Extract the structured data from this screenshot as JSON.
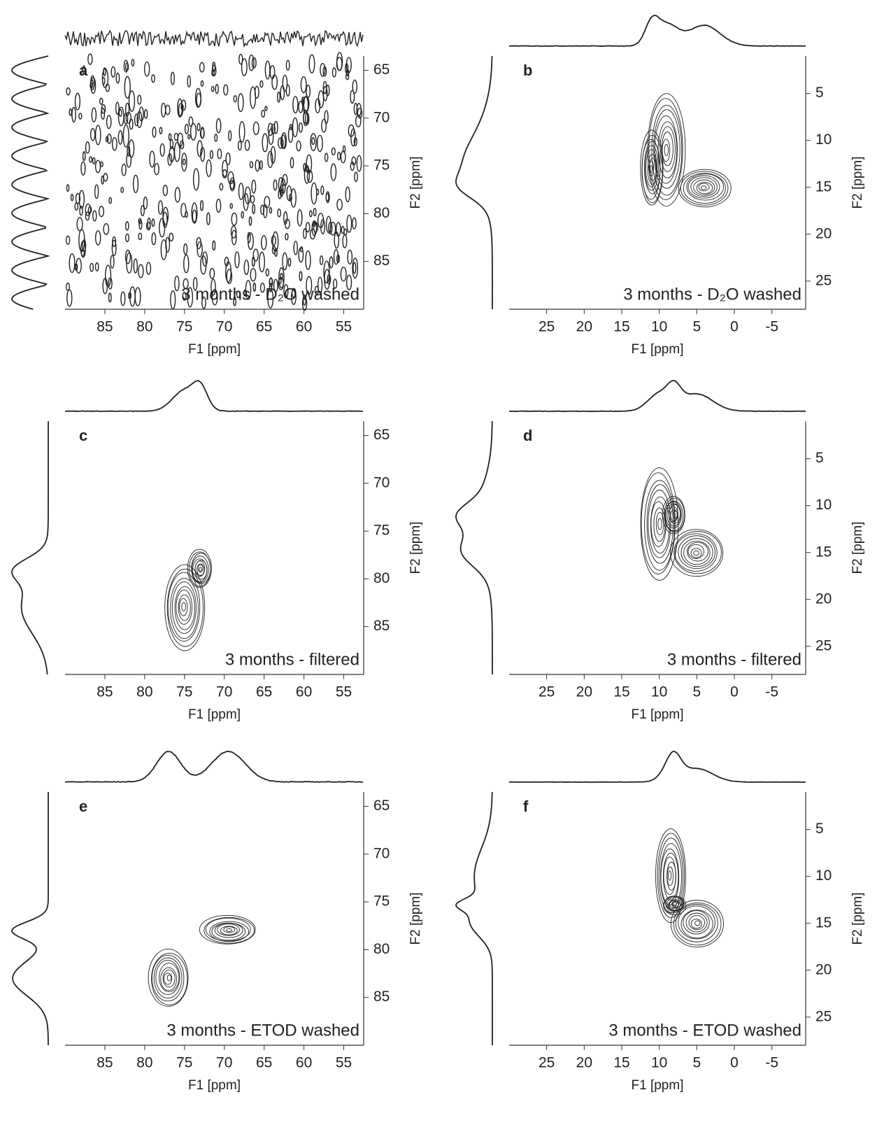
{
  "chart_data": [
    {
      "type": "contour",
      "label": "a",
      "annotation": "3 months - D₂O washed",
      "x_label": "F1 [ppm]",
      "y_label": "F2 [ppm]",
      "xlim": [
        90,
        52.5
      ],
      "xticks": [
        85,
        80,
        75,
        70,
        65,
        60,
        55
      ],
      "ylim": [
        63.5,
        90
      ],
      "yticks": [
        65,
        70,
        75,
        80,
        85
      ],
      "peaks": []
    },
    {
      "type": "contour",
      "label": "b",
      "annotation": "3 months - D₂O washed",
      "x_label": "F1 [ppm]",
      "y_label": "F2 [ppm]",
      "xlim": [
        30,
        -9.5
      ],
      "xticks": [
        25,
        20,
        15,
        10,
        5,
        0,
        -5
      ],
      "ylim": [
        1,
        28
      ],
      "yticks": [
        5,
        10,
        15,
        20,
        25
      ],
      "peaks": [
        {
          "x": 9,
          "y": 11,
          "x_width": 2.5,
          "y_width": 6
        },
        {
          "x": 11,
          "y": 13,
          "x_width": 1.5,
          "y_width": 4
        },
        {
          "x": 4,
          "y": 15,
          "x_width": 3.5,
          "y_width": 2
        }
      ]
    },
    {
      "type": "contour",
      "label": "c",
      "annotation": "3 months - filtered",
      "x_label": "F1 [ppm]",
      "y_label": "F2 [ppm]",
      "xlim": [
        90,
        52.5
      ],
      "xticks": [
        85,
        80,
        75,
        70,
        65,
        60,
        55
      ],
      "ylim": [
        63.5,
        90
      ],
      "yticks": [
        65,
        70,
        75,
        80,
        85
      ],
      "peaks": [
        {
          "x": 75,
          "y": 83,
          "x_width": 2.5,
          "y_width": 4.5
        },
        {
          "x": 73,
          "y": 79,
          "x_width": 1.5,
          "y_width": 2
        }
      ]
    },
    {
      "type": "contour",
      "label": "d",
      "annotation": "3 months - filtered",
      "x_label": "F1 [ppm]",
      "y_label": "F2 [ppm]",
      "xlim": [
        30,
        -9.5
      ],
      "xticks": [
        25,
        20,
        15,
        10,
        5,
        0,
        -5
      ],
      "ylim": [
        1,
        28
      ],
      "yticks": [
        5,
        10,
        15,
        20,
        25
      ],
      "peaks": [
        {
          "x": 10,
          "y": 12,
          "x_width": 2.5,
          "y_width": 6
        },
        {
          "x": 8,
          "y": 11,
          "x_width": 1.5,
          "y_width": 2
        },
        {
          "x": 5,
          "y": 15,
          "x_width": 3.5,
          "y_width": 2.5
        }
      ]
    },
    {
      "type": "contour",
      "label": "e",
      "annotation": "3 months - ETOD washed",
      "x_label": "F1 [ppm]",
      "y_label": "F2 [ppm]",
      "xlim": [
        90,
        52.5
      ],
      "xticks": [
        85,
        80,
        75,
        70,
        65,
        60,
        55
      ],
      "ylim": [
        63.5,
        90
      ],
      "yticks": [
        65,
        70,
        75,
        80,
        85
      ],
      "peaks": [
        {
          "x": 69.5,
          "y": 78,
          "x_width": 3.5,
          "y_width": 1.5
        },
        {
          "x": 77,
          "y": 83,
          "x_width": 2.5,
          "y_width": 3
        }
      ]
    },
    {
      "type": "contour",
      "label": "f",
      "annotation": "3 months - ETOD washed",
      "x_label": "F1 [ppm]",
      "y_label": "F2 [ppm]",
      "xlim": [
        30,
        -9.5
      ],
      "xticks": [
        25,
        20,
        15,
        10,
        5,
        0,
        -5
      ],
      "ylim": [
        1,
        28
      ],
      "yticks": [
        5,
        10,
        15,
        20,
        25
      ],
      "peaks": [
        {
          "x": 8.5,
          "y": 10,
          "x_width": 2,
          "y_width": 5
        },
        {
          "x": 8,
          "y": 13,
          "x_width": 1.5,
          "y_width": 1
        },
        {
          "x": 5,
          "y": 15,
          "x_width": 3.5,
          "y_width": 2.5
        }
      ]
    }
  ]
}
